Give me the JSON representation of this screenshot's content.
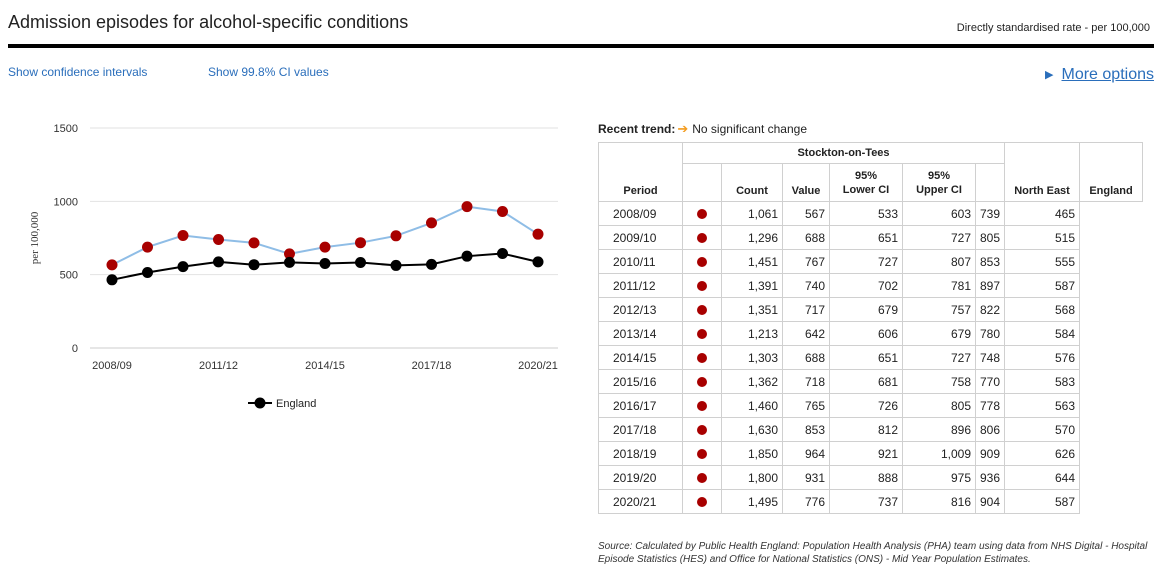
{
  "header": {
    "title": "Admission episodes for alcohol-specific conditions",
    "rate_label": "Directly standardised rate - per 100,000"
  },
  "links": {
    "show_ci": "Show confidence intervals",
    "show_998": "Show 99.8% CI values",
    "more_options": "More options"
  },
  "chart_data": {
    "type": "line",
    "x": [
      "2008/09",
      "2009/10",
      "2010/11",
      "2011/12",
      "2012/13",
      "2013/14",
      "2014/15",
      "2015/16",
      "2016/17",
      "2017/18",
      "2018/19",
      "2019/20",
      "2020/21"
    ],
    "x_tick_labels": [
      "2008/09",
      "2011/12",
      "2014/15",
      "2017/18",
      "2020/21"
    ],
    "ylabel": "per 100,000",
    "ylim": [
      0,
      1500
    ],
    "y_ticks": [
      0,
      500,
      1000,
      1500
    ],
    "grid": true,
    "legend_position": "bottom",
    "series": [
      {
        "values": [
          567,
          688,
          767,
          740,
          717,
          642,
          688,
          718,
          765,
          853,
          964,
          931,
          776
        ],
        "line_color": "#8fbde6",
        "marker_color": "#a80000"
      },
      {
        "name": "England",
        "values": [
          465,
          515,
          555,
          587,
          568,
          584,
          576,
          583,
          563,
          570,
          626,
          644,
          587
        ],
        "line_color": "#000000",
        "marker_color": "#000000"
      }
    ]
  },
  "trend": {
    "label": "Recent trend:",
    "text": "No significant change",
    "arrow_color": "#f39c1f"
  },
  "table": {
    "group_header": "Stockton-on-Tees",
    "headers": {
      "period": "Period",
      "count": "Count",
      "value": "Value",
      "lower_1": "95%",
      "lower_2": "Lower CI",
      "upper_1": "95%",
      "upper_2": "Upper CI",
      "north_east": "North East",
      "england": "England"
    },
    "marker_color": "#a80000",
    "rows": [
      {
        "period": "2008/09",
        "count": "1,061",
        "value": "567",
        "lower": "533",
        "upper": "603",
        "ne": "739",
        "eng": "465"
      },
      {
        "period": "2009/10",
        "count": "1,296",
        "value": "688",
        "lower": "651",
        "upper": "727",
        "ne": "805",
        "eng": "515"
      },
      {
        "period": "2010/11",
        "count": "1,451",
        "value": "767",
        "lower": "727",
        "upper": "807",
        "ne": "853",
        "eng": "555"
      },
      {
        "period": "2011/12",
        "count": "1,391",
        "value": "740",
        "lower": "702",
        "upper": "781",
        "ne": "897",
        "eng": "587"
      },
      {
        "period": "2012/13",
        "count": "1,351",
        "value": "717",
        "lower": "679",
        "upper": "757",
        "ne": "822",
        "eng": "568"
      },
      {
        "period": "2013/14",
        "count": "1,213",
        "value": "642",
        "lower": "606",
        "upper": "679",
        "ne": "780",
        "eng": "584"
      },
      {
        "period": "2014/15",
        "count": "1,303",
        "value": "688",
        "lower": "651",
        "upper": "727",
        "ne": "748",
        "eng": "576"
      },
      {
        "period": "2015/16",
        "count": "1,362",
        "value": "718",
        "lower": "681",
        "upper": "758",
        "ne": "770",
        "eng": "583"
      },
      {
        "period": "2016/17",
        "count": "1,460",
        "value": "765",
        "lower": "726",
        "upper": "805",
        "ne": "778",
        "eng": "563"
      },
      {
        "period": "2017/18",
        "count": "1,630",
        "value": "853",
        "lower": "812",
        "upper": "896",
        "ne": "806",
        "eng": "570"
      },
      {
        "period": "2018/19",
        "count": "1,850",
        "value": "964",
        "lower": "921",
        "upper": "1,009",
        "ne": "909",
        "eng": "626"
      },
      {
        "period": "2019/20",
        "count": "1,800",
        "value": "931",
        "lower": "888",
        "upper": "975",
        "ne": "936",
        "eng": "644"
      },
      {
        "period": "2020/21",
        "count": "1,495",
        "value": "776",
        "lower": "737",
        "upper": "816",
        "ne": "904",
        "eng": "587"
      }
    ]
  },
  "source": "Source: Calculated by Public Health England: Population Health Analysis (PHA) team using data from NHS Digital - Hospital Episode Statistics (HES) and Office for National Statistics (ONS) - Mid Year Population Estimates."
}
